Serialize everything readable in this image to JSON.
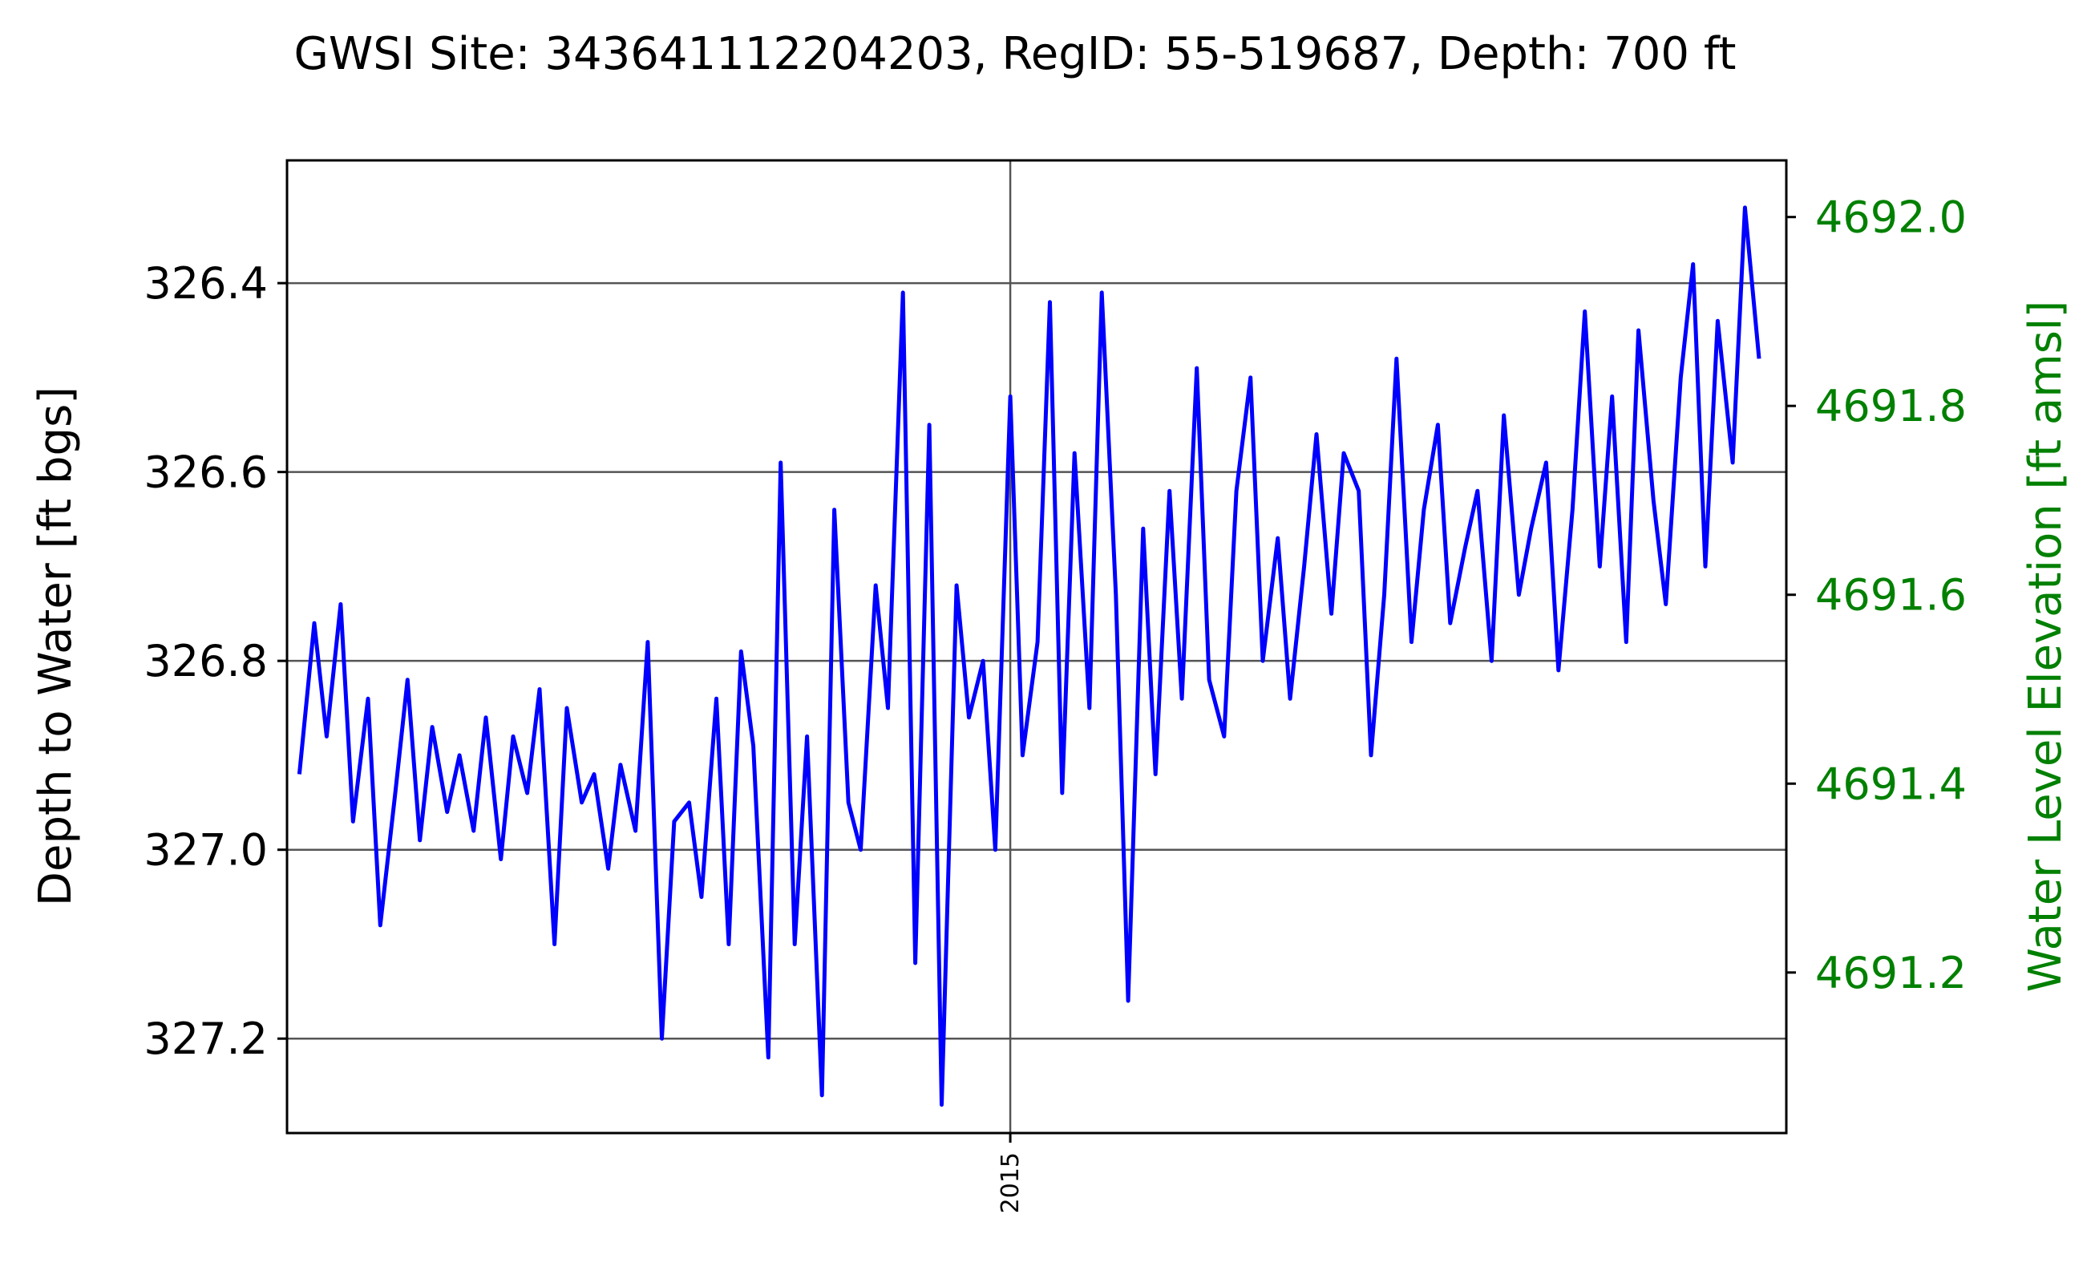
{
  "chart_data": {
    "type": "line",
    "title": "GWSI Site: 343641112204203, RegID: 55-519687, Depth: 700 ft",
    "ylabel": "Depth to Water [ft bgs]",
    "y2label": "Water Level Elevation [ft amsl]",
    "ylim": [
      327.3,
      326.27
    ],
    "y2lim": [
      4691.03,
      4692.06
    ],
    "y_ticks": [
      "326.4",
      "326.6",
      "326.8",
      "327.0",
      "327.2"
    ],
    "y2_ticks": [
      "4692.0",
      "4691.8",
      "4691.6",
      "4691.4",
      "4691.2"
    ],
    "x_ticks": [
      "2015"
    ],
    "xlim": [
      "2012-10-01",
      "2017-06-01"
    ],
    "grid": true,
    "colors": {
      "series": "#0000ff",
      "y2_axis": "#008000",
      "grid": "#555555"
    },
    "series": [
      {
        "x": [
          "2012-10-15",
          "2012-11-01",
          "2012-11-15",
          "2012-12-01",
          "2012-12-15",
          "2013-01-01",
          "2013-01-15",
          "2013-02-01",
          "2013-02-15",
          "2013-03-01",
          "2013-03-15",
          "2013-04-01",
          "2013-04-15",
          "2013-05-01",
          "2013-05-15",
          "2013-06-01",
          "2013-06-15",
          "2013-07-01",
          "2013-07-15",
          "2013-08-01",
          "2013-08-15",
          "2013-09-01",
          "2013-09-15",
          "2013-10-01",
          "2013-10-15",
          "2013-11-01",
          "2013-11-15",
          "2013-12-01",
          "2013-12-15",
          "2014-01-01",
          "2014-01-15",
          "2014-02-01",
          "2014-02-15",
          "2014-03-01",
          "2014-03-15",
          "2014-04-01",
          "2014-04-15",
          "2014-05-01",
          "2014-05-15",
          "2014-06-01",
          "2014-06-15",
          "2014-07-01",
          "2014-07-15",
          "2014-08-01",
          "2014-08-15",
          "2014-09-01",
          "2014-09-15",
          "2014-10-01",
          "2014-10-15",
          "2014-11-01",
          "2014-11-15",
          "2014-12-01",
          "2014-12-15",
          "2015-01-01",
          "2015-01-15",
          "2015-02-01",
          "2015-02-15",
          "2015-03-01",
          "2015-03-15",
          "2015-04-01",
          "2015-04-15",
          "2015-05-01",
          "2015-05-15",
          "2015-06-01",
          "2015-06-15",
          "2015-07-01",
          "2015-07-15",
          "2015-08-01",
          "2015-08-15",
          "2015-09-01",
          "2015-09-15",
          "2015-10-01",
          "2015-10-15",
          "2015-11-01",
          "2015-11-15",
          "2015-12-01",
          "2015-12-15",
          "2016-01-01",
          "2016-01-15",
          "2016-02-01",
          "2016-02-15",
          "2016-03-01",
          "2016-03-15",
          "2016-04-01",
          "2016-04-15",
          "2016-05-01",
          "2016-05-15",
          "2016-06-01",
          "2016-06-15",
          "2016-07-01",
          "2016-07-15",
          "2016-08-01",
          "2016-08-15",
          "2016-09-01",
          "2016-09-15",
          "2016-10-01",
          "2016-10-15",
          "2016-11-01",
          "2016-11-15",
          "2016-12-01",
          "2016-12-15",
          "2017-01-01",
          "2017-01-15",
          "2017-02-01",
          "2017-02-15",
          "2017-03-01",
          "2017-03-15",
          "2017-04-01",
          "2017-04-15",
          "2017-05-01"
        ],
        "values": [
          326.92,
          326.76,
          326.88,
          326.74,
          326.97,
          326.84,
          327.08,
          326.94,
          326.82,
          326.99,
          326.87,
          326.96,
          326.9,
          326.98,
          326.86,
          327.01,
          326.88,
          326.94,
          326.83,
          327.1,
          326.85,
          326.95,
          326.92,
          327.02,
          326.91,
          326.98,
          326.78,
          327.2,
          326.97,
          326.95,
          327.05,
          326.84,
          327.1,
          326.79,
          326.89,
          327.22,
          326.59,
          327.1,
          326.88,
          327.26,
          326.64,
          326.95,
          327.0,
          326.72,
          326.85,
          326.41,
          327.12,
          326.55,
          327.27,
          326.72,
          326.86,
          326.8,
          327.0,
          326.52,
          326.9,
          326.78,
          326.42,
          326.94,
          326.58,
          326.85,
          326.41,
          326.73,
          327.16,
          326.66,
          326.92,
          326.62,
          326.84,
          326.49,
          326.82,
          326.88,
          326.62,
          326.5,
          326.8,
          326.67,
          326.84,
          326.7,
          326.56,
          326.75,
          326.58,
          326.62,
          326.9,
          326.73,
          326.48,
          326.78,
          326.64,
          326.55,
          326.76,
          326.68,
          326.62,
          326.8,
          326.54,
          326.73,
          326.66,
          326.59,
          326.81,
          326.64,
          326.43,
          326.7,
          326.52,
          326.78,
          326.45,
          326.63,
          326.74,
          326.5,
          326.38,
          326.7,
          326.44,
          326.59,
          326.32,
          326.48
        ]
      }
    ]
  }
}
